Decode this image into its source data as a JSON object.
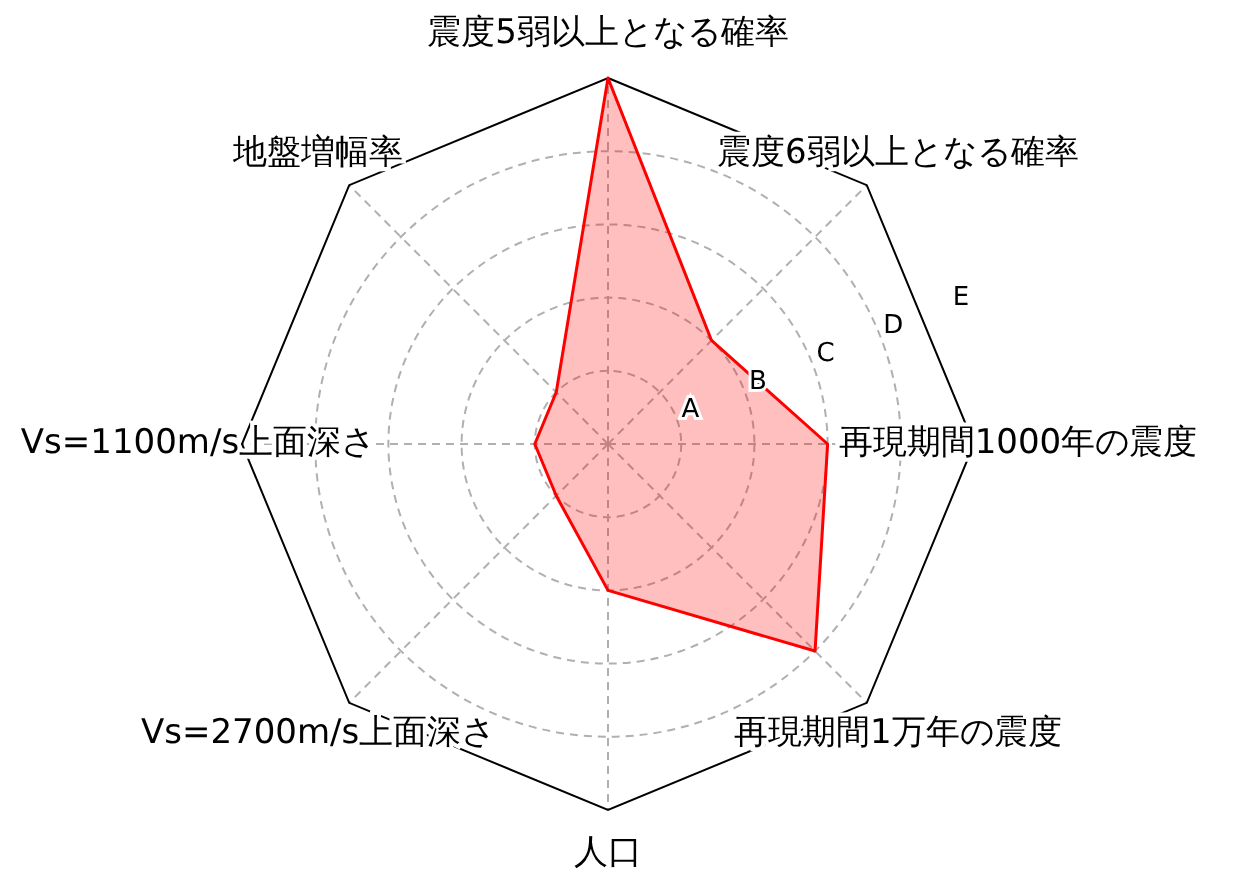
{
  "chart_data": {
    "type": "radar",
    "categories": [
      "震度5弱以上となる確率",
      "震度6弱以上となる確率",
      "再現期間1000年の震度",
      "再現期間1万年の震度",
      "人口",
      "Vs=2700m/s上面深さ",
      "Vs=1100m/s上面深さ",
      "地盤増幅率"
    ],
    "series": [
      {
        "color": "#ff0000",
        "values": [
          5,
          2,
          3,
          4,
          2,
          1,
          1,
          1
        ]
      }
    ],
    "ylim": [
      0,
      5
    ],
    "yticks": [
      {
        "value": 1,
        "label": "A"
      },
      {
        "value": 2,
        "label": "B"
      },
      {
        "value": 3,
        "label": "C"
      },
      {
        "value": 4,
        "label": "D"
      },
      {
        "value": 5,
        "label": "E"
      }
    ],
    "grid": true
  }
}
